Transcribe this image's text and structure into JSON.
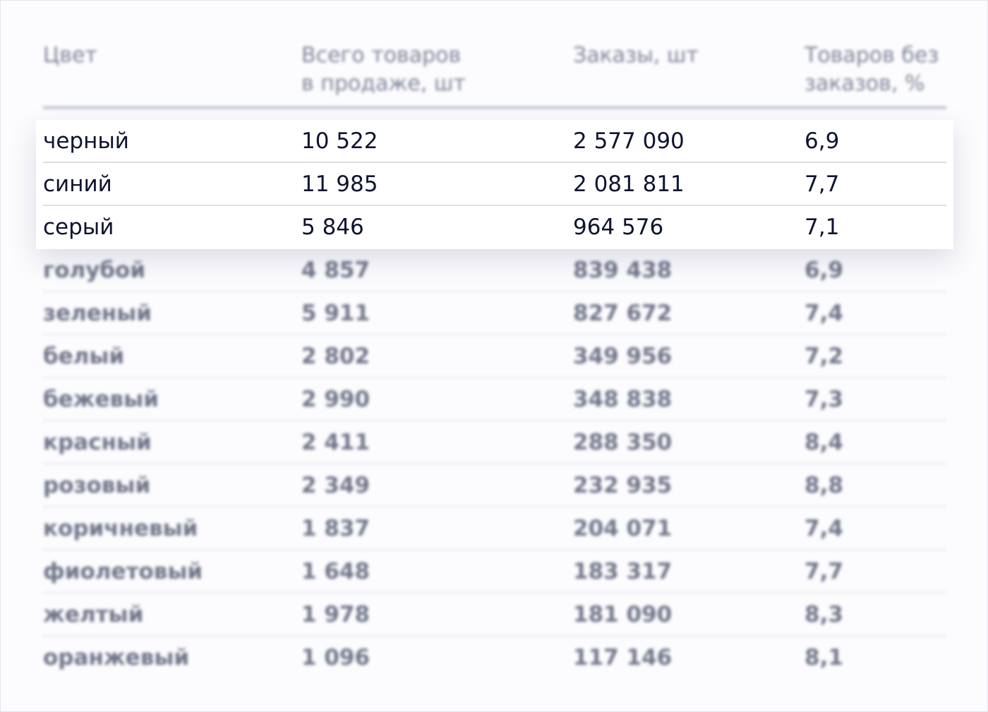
{
  "header": {
    "col_color": "Цвет",
    "col_total": "Всего товаров\nв продаже, шт",
    "col_orders": "Заказы, шт",
    "col_no_orders": "Товаров без\nзаказов, %"
  },
  "highlighted_rows": [
    {
      "color": "черный",
      "total": "10 522",
      "orders": "2 577 090",
      "no_orders": "6,9"
    },
    {
      "color": "синий",
      "total": "11 985",
      "orders": "2 081 811",
      "no_orders": "7,7"
    },
    {
      "color": "серый",
      "total": "5 846",
      "orders": "964 576",
      "no_orders": "7,1"
    }
  ],
  "rows": [
    {
      "color": "голубой",
      "total": "4 857",
      "orders": "839 438",
      "no_orders": "6,9"
    },
    {
      "color": "зеленый",
      "total": "5 911",
      "orders": "827 672",
      "no_orders": "7,4"
    },
    {
      "color": "белый",
      "total": "2 802",
      "orders": "349 956",
      "no_orders": "7,2"
    },
    {
      "color": "бежевый",
      "total": "2 990",
      "orders": "348 838",
      "no_orders": "7,3"
    },
    {
      "color": "красный",
      "total": "2 411",
      "orders": "288 350",
      "no_orders": "8,4"
    },
    {
      "color": "розовый",
      "total": "2 349",
      "orders": "232 935",
      "no_orders": "8,8"
    },
    {
      "color": "коричневый",
      "total": "1 837",
      "orders": "204 071",
      "no_orders": "7,4"
    },
    {
      "color": "фиолетовый",
      "total": "1 648",
      "orders": "183 317",
      "no_orders": "7,7"
    },
    {
      "color": "желтый",
      "total": "1 978",
      "orders": "181 090",
      "no_orders": "8,3"
    },
    {
      "color": "оранжевый",
      "total": "1 096",
      "orders": "117 146",
      "no_orders": "8,1"
    }
  ]
}
